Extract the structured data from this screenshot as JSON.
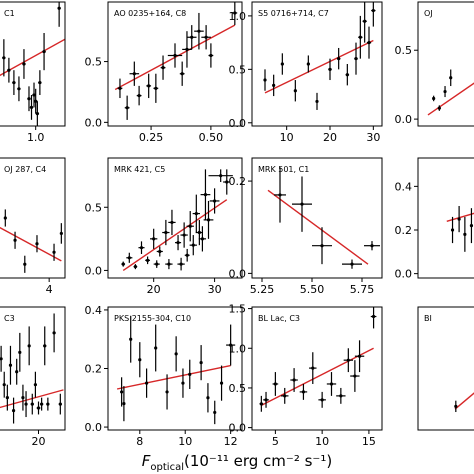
{
  "chart_data": [
    {
      "title": "C1",
      "type": "scatter",
      "xlim": [
        0.55,
        1.35
      ],
      "ylim": [
        0.0,
        1.0
      ],
      "xticks": [
        1.0
      ],
      "xtick_labels": [
        "1.0"
      ],
      "yticks": [],
      "points": [
        [
          0.62,
          0.55,
          0.02,
          0.15
        ],
        [
          0.68,
          0.45,
          0.02,
          0.1
        ],
        [
          0.74,
          0.35,
          0.02,
          0.1
        ],
        [
          0.8,
          0.3,
          0.02,
          0.1
        ],
        [
          0.86,
          0.5,
          0.02,
          0.12
        ],
        [
          0.92,
          0.22,
          0.02,
          0.1
        ],
        [
          0.95,
          0.15,
          0.02,
          0.1
        ],
        [
          0.98,
          0.25,
          0.02,
          0.1
        ],
        [
          1.0,
          0.2,
          0.02,
          0.1
        ],
        [
          1.02,
          0.1,
          0.02,
          0.1
        ],
        [
          1.05,
          0.35,
          0.02,
          0.1
        ],
        [
          1.1,
          0.6,
          0.02,
          0.15
        ],
        [
          1.28,
          0.95,
          0.02,
          0.15
        ]
      ],
      "fit": [
        [
          0.55,
          0.4
        ],
        [
          1.35,
          0.7
        ]
      ]
    },
    {
      "title": "AO 0235+164, C8",
      "type": "scatter",
      "xlim": [
        0.07,
        0.63
      ],
      "ylim": [
        -0.03,
        0.99
      ],
      "xticks": [
        0.25,
        0.5
      ],
      "xtick_labels": [
        "0.25",
        "0.50"
      ],
      "yticks": [
        0.0,
        0.5
      ],
      "ytick_labels": [
        "0.0",
        "0.5"
      ],
      "points": [
        [
          0.12,
          0.28,
          0.01,
          0.08
        ],
        [
          0.15,
          0.12,
          0.01,
          0.1
        ],
        [
          0.18,
          0.4,
          0.02,
          0.1
        ],
        [
          0.2,
          0.22,
          0.01,
          0.08
        ],
        [
          0.24,
          0.3,
          0.01,
          0.1
        ],
        [
          0.27,
          0.28,
          0.01,
          0.12
        ],
        [
          0.3,
          0.45,
          0.01,
          0.1
        ],
        [
          0.35,
          0.55,
          0.03,
          0.1
        ],
        [
          0.38,
          0.4,
          0.01,
          0.1
        ],
        [
          0.4,
          0.6,
          0.02,
          0.15
        ],
        [
          0.42,
          0.7,
          0.02,
          0.1
        ],
        [
          0.45,
          0.75,
          0.02,
          0.15
        ],
        [
          0.48,
          0.7,
          0.02,
          0.1
        ],
        [
          0.5,
          0.55,
          0.01,
          0.1
        ],
        [
          0.6,
          0.9,
          0.01,
          0.1
        ]
      ],
      "fit": [
        [
          0.1,
          0.27
        ],
        [
          0.6,
          0.8
        ]
      ]
    },
    {
      "title": "S5 0716+714, C7",
      "type": "scatter",
      "xlim": [
        2.0,
        32.0
      ],
      "ylim": [
        -0.03,
        1.13
      ],
      "xticks": [
        10,
        20,
        30
      ],
      "xtick_labels": [
        "10",
        "20",
        "30"
      ],
      "yticks": [
        0.0,
        0.5,
        1.0
      ],
      "ytick_labels": [
        "0.0",
        "0.5",
        "1.0"
      ],
      "points": [
        [
          5,
          0.4,
          0.3,
          0.1
        ],
        [
          7,
          0.35,
          0.3,
          0.1
        ],
        [
          9,
          0.55,
          0.3,
          0.1
        ],
        [
          12,
          0.3,
          0.3,
          0.1
        ],
        [
          15,
          0.55,
          0.3,
          0.08
        ],
        [
          17,
          0.2,
          0.3,
          0.08
        ],
        [
          20,
          0.5,
          0.4,
          0.1
        ],
        [
          22,
          0.6,
          0.4,
          0.1
        ],
        [
          24,
          0.45,
          0.4,
          0.1
        ],
        [
          26,
          0.6,
          0.4,
          0.15
        ],
        [
          27,
          0.8,
          0.5,
          0.2
        ],
        [
          28,
          0.95,
          0.5,
          0.2
        ],
        [
          29,
          0.75,
          0.5,
          0.15
        ],
        [
          30,
          1.05,
          0.5,
          0.15
        ]
      ],
      "fit": [
        [
          5,
          0.28
        ],
        [
          30,
          0.77
        ]
      ]
    },
    {
      "title": "OJ",
      "type": "scatter",
      "xlim": [
        -1.9,
        3.3
      ],
      "ylim": [
        -0.05,
        0.85
      ],
      "xticks": [],
      "yticks": [
        0.0,
        0.5
      ],
      "ytick_labels": [
        "0.0",
        "0.5"
      ],
      "points": [
        [
          -0.8,
          0.15,
          0.05,
          0.02
        ],
        [
          -0.4,
          0.08,
          0.05,
          0.02
        ],
        [
          0.0,
          0.2,
          0.05,
          0.04
        ],
        [
          0.4,
          0.3,
          0.05,
          0.06
        ]
      ],
      "fit": [
        [
          -1.2,
          0.03
        ],
        [
          3.3,
          0.35
        ]
      ]
    },
    {
      "title": "OJ 287, C4",
      "type": "scatter",
      "xlim": [
        1.9,
        4.65
      ],
      "ylim": [
        0.0,
        0.7
      ],
      "xticks": [
        4
      ],
      "xtick_labels": [
        "4"
      ],
      "yticks": [],
      "points": [
        [
          2.2,
          0.35,
          0.05,
          0.05
        ],
        [
          2.6,
          0.22,
          0.05,
          0.05
        ],
        [
          3.0,
          0.08,
          0.05,
          0.05
        ],
        [
          3.5,
          0.2,
          0.05,
          0.05
        ],
        [
          4.2,
          0.15,
          0.05,
          0.05
        ],
        [
          4.5,
          0.26,
          0.05,
          0.06
        ]
      ],
      "fit": [
        [
          1.9,
          0.3
        ],
        [
          4.5,
          0.1
        ]
      ]
    },
    {
      "title": "MRK 421, C5",
      "type": "scatter",
      "xlim": [
        12.5,
        34.5
      ],
      "ylim": [
        -0.06,
        0.89
      ],
      "xticks": [
        20,
        30
      ],
      "xtick_labels": [
        "20",
        "30"
      ],
      "yticks": [
        0.0,
        0.5
      ],
      "ytick_labels": [
        "0.0",
        "0.5"
      ],
      "points": [
        [
          15,
          0.05,
          0.3,
          0.02
        ],
        [
          16,
          0.1,
          0.5,
          0.04
        ],
        [
          17,
          0.03,
          0.3,
          0.02
        ],
        [
          18,
          0.18,
          0.5,
          0.05
        ],
        [
          19,
          0.08,
          0.4,
          0.03
        ],
        [
          20,
          0.25,
          0.6,
          0.08
        ],
        [
          20.5,
          0.05,
          0.5,
          0.03
        ],
        [
          21,
          0.15,
          0.5,
          0.04
        ],
        [
          22,
          0.3,
          0.6,
          0.1
        ],
        [
          22.5,
          0.05,
          0.6,
          0.04
        ],
        [
          23,
          0.38,
          0.6,
          0.1
        ],
        [
          24,
          0.22,
          0.5,
          0.06
        ],
        [
          24.5,
          0.05,
          0.6,
          0.05
        ],
        [
          25,
          0.28,
          0.6,
          0.1
        ],
        [
          25.5,
          0.12,
          0.4,
          0.05
        ],
        [
          26,
          0.35,
          0.6,
          0.12
        ],
        [
          26.5,
          0.2,
          0.6,
          0.08
        ],
        [
          27,
          0.45,
          0.6,
          0.15
        ],
        [
          27.5,
          0.3,
          0.6,
          0.1
        ],
        [
          28,
          0.25,
          0.6,
          0.1
        ],
        [
          28.5,
          0.6,
          0.8,
          0.2
        ],
        [
          29,
          0.4,
          0.8,
          0.15
        ],
        [
          30,
          0.55,
          0.8,
          0.1
        ],
        [
          31,
          0.75,
          2.0,
          0.05
        ],
        [
          32,
          0.7,
          0.6,
          0.1
        ]
      ],
      "fit": [
        [
          15,
          0.0
        ],
        [
          32,
          0.56
        ]
      ]
    },
    {
      "title": "MRK 501, C1",
      "type": "scatter",
      "xlim": [
        5.2,
        5.85
      ],
      "ylim": [
        -0.01,
        0.25
      ],
      "xticks": [
        5.25,
        5.5,
        5.75
      ],
      "xtick_labels": [
        "5.25",
        "5.50",
        "5.75"
      ],
      "yticks": [
        0.0,
        0.2
      ],
      "ytick_labels": [
        "0.0",
        "0.2"
      ],
      "points": [
        [
          5.34,
          0.17,
          0.03,
          0.06
        ],
        [
          5.45,
          0.15,
          0.05,
          0.06
        ],
        [
          5.55,
          0.06,
          0.05,
          0.04
        ],
        [
          5.7,
          0.02,
          0.05,
          0.01
        ],
        [
          5.8,
          0.06,
          0.04,
          0.01
        ]
      ],
      "fit": [
        [
          5.28,
          0.18
        ],
        [
          5.78,
          0.02
        ]
      ]
    },
    {
      "title": "",
      "type": "scatter",
      "xlim": [
        -4.0,
        5.0
      ],
      "ylim": [
        -0.02,
        0.53
      ],
      "xticks": [],
      "yticks": [
        0.0,
        0.2,
        0.4
      ],
      "ytick_labels": [
        "0.0",
        "0.2",
        "0.4"
      ],
      "points": [
        [
          0.2,
          0.2,
          0.1,
          0.06
        ],
        [
          1.0,
          0.25,
          0.1,
          0.06
        ],
        [
          1.7,
          0.18,
          0.1,
          0.08
        ],
        [
          2.5,
          0.22,
          0.1,
          0.08
        ],
        [
          3.2,
          0.15,
          0.1,
          0.08
        ],
        [
          4.0,
          0.3,
          0.1,
          0.07
        ]
      ],
      "fit": [
        [
          -0.5,
          0.24
        ],
        [
          5.0,
          0.3
        ]
      ]
    },
    {
      "title": "C3",
      "type": "scatter",
      "xlim": [
        7.0,
        28.5
      ],
      "ylim": [
        -0.05,
        0.9
      ],
      "xticks": [
        20
      ],
      "xtick_labels": [
        "20"
      ],
      "yticks": [],
      "points": [
        [
          8,
          0.5,
          0.3,
          0.1
        ],
        [
          9,
          0.3,
          0.3,
          0.1
        ],
        [
          10,
          0.2,
          0.3,
          0.1
        ],
        [
          11,
          0.45,
          0.3,
          0.15
        ],
        [
          12,
          0.1,
          0.3,
          0.1
        ],
        [
          13,
          0.4,
          0.3,
          0.1
        ],
        [
          14,
          0.55,
          0.3,
          0.15
        ],
        [
          15,
          0.2,
          0.4,
          0.1
        ],
        [
          16,
          0.15,
          0.3,
          0.1
        ],
        [
          17,
          0.6,
          0.4,
          0.15
        ],
        [
          18,
          0.15,
          0.5,
          0.08
        ],
        [
          19,
          0.3,
          0.4,
          0.1
        ],
        [
          20,
          0.12,
          0.6,
          0.05
        ],
        [
          21,
          0.15,
          0.5,
          0.05
        ],
        [
          22,
          0.6,
          0.5,
          0.15
        ],
        [
          23,
          0.15,
          0.5,
          0.05
        ],
        [
          25,
          0.7,
          0.5,
          0.15
        ],
        [
          27,
          0.15,
          0.5,
          0.08
        ]
      ],
      "fit": [
        [
          7,
          0.12
        ],
        [
          28,
          0.26
        ]
      ]
    },
    {
      "title": "PKS 2155-304, C10",
      "type": "scatter",
      "xlim": [
        6.6,
        12.5
      ],
      "ylim": [
        -0.01,
        0.41
      ],
      "xticks": [
        8,
        10,
        12
      ],
      "xtick_labels": [
        "8",
        "10",
        "12"
      ],
      "yticks": [
        0.0,
        0.2,
        0.4
      ],
      "ytick_labels": [
        "0.0",
        "0.2",
        "0.4"
      ],
      "points": [
        [
          7.2,
          0.12,
          0.05,
          0.05
        ],
        [
          7.3,
          0.08,
          0.05,
          0.06
        ],
        [
          7.6,
          0.3,
          0.05,
          0.08
        ],
        [
          8.0,
          0.23,
          0.05,
          0.06
        ],
        [
          8.3,
          0.15,
          0.05,
          0.05
        ],
        [
          8.7,
          0.27,
          0.05,
          0.08
        ],
        [
          9.2,
          0.12,
          0.05,
          0.06
        ],
        [
          9.6,
          0.25,
          0.05,
          0.06
        ],
        [
          9.9,
          0.15,
          0.05,
          0.05
        ],
        [
          10.2,
          0.18,
          0.05,
          0.05
        ],
        [
          10.7,
          0.22,
          0.05,
          0.06
        ],
        [
          11.0,
          0.1,
          0.05,
          0.05
        ],
        [
          11.3,
          0.05,
          0.05,
          0.04
        ],
        [
          11.6,
          0.15,
          0.05,
          0.06
        ],
        [
          12.0,
          0.28,
          0.2,
          0.07
        ]
      ],
      "fit": [
        [
          7.0,
          0.13
        ],
        [
          12.0,
          0.21
        ]
      ]
    },
    {
      "title": "BL Lac, C3",
      "type": "scatter",
      "xlim": [
        2.5,
        16.4
      ],
      "ylim": [
        -0.03,
        1.52
      ],
      "xticks": [
        5,
        10,
        15
      ],
      "xtick_labels": [
        "5",
        "10",
        "15"
      ],
      "yticks": [
        0.0,
        0.5,
        1.0,
        1.5
      ],
      "ytick_labels": [
        "0.0",
        "0.5",
        "1.0",
        "1.5"
      ],
      "points": [
        [
          3.5,
          0.3,
          0.2,
          0.1
        ],
        [
          4.0,
          0.35,
          0.3,
          0.1
        ],
        [
          5.0,
          0.55,
          0.3,
          0.15
        ],
        [
          6.0,
          0.4,
          0.4,
          0.1
        ],
        [
          7.0,
          0.6,
          0.4,
          0.15
        ],
        [
          8.0,
          0.45,
          0.4,
          0.1
        ],
        [
          9.0,
          0.75,
          0.4,
          0.2
        ],
        [
          10.0,
          0.35,
          0.4,
          0.1
        ],
        [
          11.0,
          0.55,
          0.5,
          0.15
        ],
        [
          12.0,
          0.4,
          0.5,
          0.1
        ],
        [
          12.8,
          0.85,
          0.5,
          0.15
        ],
        [
          13.5,
          0.65,
          0.5,
          0.2
        ],
        [
          14.0,
          0.9,
          0.5,
          0.2
        ],
        [
          15.5,
          1.4,
          0.3,
          0.15
        ]
      ],
      "fit": [
        [
          3.5,
          0.28
        ],
        [
          15.5,
          1.0
        ]
      ]
    },
    {
      "title": "BI",
      "type": "scatter",
      "xlim": [
        -4.0,
        5.0
      ],
      "ylim": [
        -0.1,
        1.2
      ],
      "xticks": [],
      "yticks": [],
      "points": [
        [
          0.6,
          0.15,
          0.1,
          0.06
        ]
      ],
      "fit": [
        [
          0.5,
          0.12
        ],
        [
          5.0,
          0.45
        ]
      ]
    }
  ],
  "x_axis_label": {
    "main": "F",
    "sub": "optical",
    "rest": "(10⁻¹¹ erg cm⁻² s⁻¹)"
  }
}
